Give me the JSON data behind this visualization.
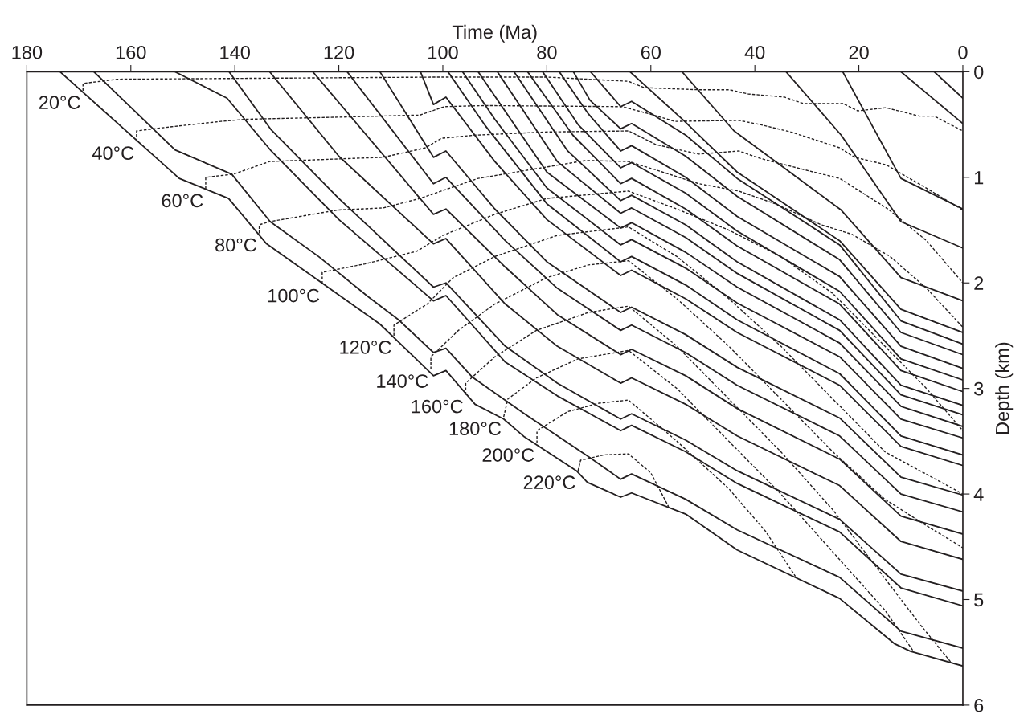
{
  "chart_data": {
    "type": "line",
    "xlabel": "Time (Ma)",
    "ylabel": "Depth (km)",
    "xlim": [
      180,
      0
    ],
    "xticks": [
      180,
      160,
      140,
      120,
      100,
      80,
      60,
      40,
      20,
      0
    ],
    "ylim": [
      6,
      0
    ],
    "yticks": [
      0,
      1,
      2,
      3,
      4,
      5,
      6
    ],
    "grid": false,
    "legend": false,
    "series": [
      {
        "color": "#231f20",
        "x": [
          173.6,
          150.7,
          141.2,
          133.9,
          112.1,
          101.8,
          99.4,
          93.8,
          88.3,
          84.3,
          74.3,
          72.2,
          65.8,
          63.7,
          53.3,
          43.4,
          23.7,
          13.1,
          10.1,
          0
        ],
        "values": [
          0,
          1.01,
          1.2,
          1.63,
          2.39,
          2.88,
          2.83,
          3.15,
          3.29,
          3.46,
          3.78,
          3.89,
          4.03,
          3.99,
          4.19,
          4.53,
          4.99,
          5.42,
          5.49,
          5.63
        ]
      },
      {
        "color": "#231f20",
        "x": [
          167.1,
          151.5,
          140.6,
          133.2,
          123.9,
          114.4,
          108.5,
          101.8,
          99.4,
          94.4,
          84.3,
          71.9,
          65.8,
          63.7,
          53.3,
          43.4,
          23.7,
          11.9,
          0
        ],
        "values": [
          0,
          0.74,
          0.97,
          1.42,
          1.75,
          2.13,
          2.35,
          2.66,
          2.62,
          2.89,
          3.24,
          3.65,
          3.86,
          3.81,
          4.05,
          4.34,
          4.79,
          5.3,
          5.46
        ]
      },
      {
        "color": "#231f20",
        "x": [
          151.5,
          141.5,
          133,
          120,
          101.8,
          99.4,
          88,
          78,
          65.8,
          63.7,
          53.3,
          43.4,
          23.7,
          11.9,
          0
        ],
        "values": [
          0,
          0.25,
          0.75,
          1.4,
          2.17,
          2.12,
          2.75,
          3.07,
          3.4,
          3.35,
          3.6,
          3.9,
          4.36,
          4.89,
          5.06
        ]
      },
      {
        "color": "#231f20",
        "x": [
          141.1,
          133,
          120,
          101.8,
          99.4,
          88,
          78,
          65.8,
          63.7,
          53.3,
          43.4,
          23.7,
          11.9,
          0
        ],
        "values": [
          0,
          0.55,
          1.2,
          2.04,
          2.0,
          2.6,
          2.95,
          3.29,
          3.24,
          3.49,
          3.78,
          4.24,
          4.76,
          4.92
        ]
      },
      {
        "color": "#231f20",
        "x": [
          133.3,
          120,
          101.8,
          99.4,
          88,
          78,
          65.8,
          63.7,
          53.3,
          43.4,
          23.7,
          11.9,
          0
        ],
        "values": [
          0,
          0.8,
          1.63,
          1.58,
          2.2,
          2.6,
          2.95,
          2.9,
          3.15,
          3.45,
          3.92,
          4.45,
          4.62
        ]
      },
      {
        "color": "#231f20",
        "x": [
          125,
          101.8,
          99.4,
          88,
          78,
          65.8,
          63.7,
          53.3,
          43.4,
          23.7,
          11.9,
          0
        ],
        "values": [
          0,
          1.35,
          1.3,
          1.85,
          2.3,
          2.68,
          2.63,
          2.88,
          3.19,
          3.67,
          4.21,
          4.38
        ]
      },
      {
        "color": "#231f20",
        "x": [
          118.4,
          101.8,
          99.4,
          88,
          78,
          65.8,
          63.7,
          53.3,
          43.4,
          23.7,
          11.9,
          0
        ],
        "values": [
          0,
          1.06,
          1.0,
          1.6,
          2.05,
          2.45,
          2.4,
          2.66,
          2.97,
          3.45,
          4.0,
          4.17
        ]
      },
      {
        "color": "#231f20",
        "x": [
          112.1,
          101.8,
          99.4,
          90,
          80,
          65.8,
          63.7,
          53.3,
          43.4,
          23.7,
          11.9,
          0
        ],
        "values": [
          0,
          0.81,
          0.75,
          1.3,
          1.8,
          2.28,
          2.23,
          2.49,
          2.8,
          3.28,
          3.84,
          4.01
        ]
      },
      {
        "color": "#231f20",
        "x": [
          104.3,
          101.8,
          99.4,
          90,
          80,
          65.8,
          63.7,
          53.3,
          43.4,
          23.7,
          11.9,
          0
        ],
        "values": [
          0,
          0.31,
          0.24,
          0.85,
          1.4,
          1.93,
          1.88,
          2.15,
          2.47,
          2.97,
          3.55,
          3.73
        ]
      },
      {
        "color": "#231f20",
        "x": [
          99,
          92,
          80,
          65.8,
          63.7,
          53.3,
          43.4,
          23.7,
          11.9,
          0
        ],
        "values": [
          0,
          0.5,
          1.25,
          1.8,
          1.75,
          2.02,
          2.35,
          2.86,
          3.45,
          3.63
        ]
      },
      {
        "color": "#231f20",
        "x": [
          96.2,
          90,
          80,
          65.8,
          63.7,
          53.3,
          43.4,
          23.7,
          11.9,
          0
        ],
        "values": [
          0,
          0.45,
          1.1,
          1.64,
          1.59,
          1.86,
          2.19,
          2.7,
          3.29,
          3.47
        ]
      },
      {
        "color": "#231f20",
        "x": [
          93.2,
          80,
          65.8,
          63.7,
          53.3,
          43.4,
          23.7,
          11.9,
          0
        ],
        "values": [
          0,
          0.95,
          1.48,
          1.43,
          1.71,
          2.04,
          2.57,
          3.17,
          3.36
        ]
      },
      {
        "color": "#231f20",
        "x": [
          89.5,
          78,
          65.8,
          63.7,
          53.3,
          43.4,
          23.7,
          11.9,
          0
        ],
        "values": [
          0,
          0.85,
          1.34,
          1.29,
          1.57,
          1.91,
          2.45,
          3.06,
          3.25
        ]
      },
      {
        "color": "#231f20",
        "x": [
          86.3,
          76,
          65.8,
          63.7,
          53.3,
          43.4,
          23.7,
          11.9,
          0
        ],
        "values": [
          0,
          0.75,
          1.22,
          1.17,
          1.45,
          1.8,
          2.35,
          2.97,
          3.16
        ]
      },
      {
        "color": "#231f20",
        "x": [
          83.7,
          75,
          65.8,
          63.7,
          53.3,
          43.4,
          23.7,
          11.9,
          0
        ],
        "values": [
          0,
          0.6,
          1.06,
          1.01,
          1.3,
          1.65,
          2.2,
          2.83,
          3.03
        ]
      },
      {
        "color": "#231f20",
        "x": [
          80.8,
          74,
          65.8,
          63.7,
          53.3,
          43.4,
          23.7,
          11.9,
          0
        ],
        "values": [
          0,
          0.5,
          0.91,
          0.86,
          1.15,
          1.51,
          2.08,
          2.72,
          2.92
        ]
      },
      {
        "color": "#231f20",
        "x": [
          77.6,
          72,
          65.8,
          63.7,
          53.3,
          43.4,
          23.7,
          11.9,
          0
        ],
        "values": [
          0,
          0.4,
          0.75,
          0.7,
          1.0,
          1.37,
          1.94,
          2.6,
          2.81
        ]
      },
      {
        "color": "#231f20",
        "x": [
          74.9,
          71.7,
          65.8,
          63.7,
          53.3,
          43.4,
          23.7,
          11.9,
          0
        ],
        "values": [
          0,
          0.27,
          0.54,
          0.49,
          0.8,
          1.18,
          1.78,
          2.47,
          2.68
        ]
      },
      {
        "color": "#231f20",
        "x": [
          71.6,
          65.8,
          63.7,
          53.3,
          43.4,
          23.7,
          11.9,
          0
        ],
        "values": [
          0,
          0.33,
          0.28,
          0.6,
          1.01,
          1.64,
          2.36,
          2.58
        ]
      },
      {
        "color": "#231f20",
        "x": [
          64,
          53.7,
          43.4,
          23.7,
          11.9,
          0
        ],
        "values": [
          0,
          0.46,
          0.95,
          1.6,
          2.25,
          2.47
        ]
      },
      {
        "color": "#231f20",
        "x": [
          54,
          44,
          23.4,
          11.9,
          0
        ],
        "values": [
          0,
          0.56,
          1.31,
          1.95,
          2.17
        ]
      },
      {
        "color": "#231f20",
        "x": [
          34,
          23.4,
          11.9,
          0
        ],
        "values": [
          0,
          0.6,
          1.42,
          1.67
        ]
      },
      {
        "color": "#231f20",
        "x": [
          23.1,
          11.9,
          0
        ],
        "values": [
          0,
          1.01,
          1.3
        ]
      },
      {
        "color": "#231f20",
        "x": [
          11.9,
          0
        ],
        "values": [
          0,
          0.49
        ]
      },
      {
        "color": "#231f20",
        "x": [
          5.5,
          0
        ],
        "values": [
          0,
          0.25
        ]
      },
      {
        "color": "#231f20",
        "line_style": "dashed",
        "x": [
          169.2,
          169.2,
          162.5,
          100,
          80,
          64.3,
          61.3,
          50.8,
          44.9,
          41.3,
          34.3,
          30.7,
          23.1,
          20.2,
          14.8,
          8.4,
          5.5,
          0
        ],
        "values": [
          0.18,
          0.11,
          0.07,
          0.05,
          0.05,
          0.09,
          0.15,
          0.17,
          0.17,
          0.21,
          0.24,
          0.3,
          0.3,
          0.37,
          0.34,
          0.42,
          0.42,
          0.56
        ]
      },
      {
        "color": "#231f20",
        "line_style": "dashed",
        "x": [
          158.9,
          158.9,
          152.1,
          142.7,
          138,
          120.3,
          104.4,
          99.7,
          91.9,
          65.5,
          60.2,
          55.4,
          43.1,
          39,
          33.1,
          23.7,
          20.8,
          14.8,
          7.1,
          0
        ],
        "values": [
          0.66,
          0.56,
          0.52,
          0.47,
          0.45,
          0.43,
          0.41,
          0.33,
          0.32,
          0.33,
          0.4,
          0.47,
          0.46,
          0.5,
          0.57,
          0.72,
          0.81,
          0.88,
          1.1,
          1.31
        ]
      },
      {
        "color": "#231f20",
        "line_style": "dashed",
        "x": [
          145.6,
          145.6,
          140.3,
          133.3,
          111.5,
          103.3,
          100.3,
          93.8,
          80,
          64.3,
          59,
          50.8,
          43.1,
          39,
          29.5,
          23.7,
          14.4,
          7,
          0
        ],
        "values": [
          1.11,
          1.0,
          0.97,
          0.85,
          0.81,
          0.72,
          0.63,
          0.6,
          0.57,
          0.56,
          0.69,
          0.78,
          0.75,
          0.82,
          0.94,
          1.01,
          1.3,
          1.6,
          2.0
        ]
      },
      {
        "color": "#231f20",
        "line_style": "dashed",
        "x": [
          135.3,
          135.3,
          133.3,
          120.3,
          111.5,
          104.4,
          100.3,
          93.2,
          72.5,
          64.3,
          59,
          50.8,
          43.1,
          36.1,
          27.2,
          21.3,
          14,
          7,
          0
        ],
        "values": [
          1.53,
          1.45,
          1.42,
          1.31,
          1.29,
          1.2,
          1.13,
          1.01,
          0.84,
          0.85,
          0.93,
          1.06,
          1.13,
          1.25,
          1.45,
          1.54,
          1.75,
          2.05,
          2.42
        ]
      },
      {
        "color": "#231f20",
        "line_style": "dashed",
        "x": [
          123.2,
          123.2,
          115,
          105,
          100,
          90,
          80,
          64.3,
          55,
          45,
          35,
          25,
          15,
          7,
          0
        ],
        "values": [
          2.01,
          1.9,
          1.82,
          1.7,
          1.55,
          1.35,
          1.2,
          1.13,
          1.3,
          1.5,
          1.75,
          2.1,
          2.6,
          3.0,
          3.4
        ]
      },
      {
        "color": "#231f20",
        "line_style": "dashed",
        "x": [
          109.4,
          109.4,
          103,
          98,
          90,
          78,
          64.3,
          55,
          45,
          35,
          25,
          15,
          0
        ],
        "values": [
          2.5,
          2.4,
          2.2,
          1.95,
          1.75,
          1.55,
          1.47,
          1.75,
          2.15,
          2.6,
          3.1,
          3.6,
          4.0
        ]
      },
      {
        "color": "#231f20",
        "line_style": "dashed",
        "x": [
          102.3,
          102.3,
          97,
          90,
          80,
          72,
          64.3,
          55,
          45,
          35,
          25,
          15,
          7,
          0
        ],
        "values": [
          2.82,
          2.7,
          2.45,
          2.2,
          1.95,
          1.83,
          1.79,
          2.15,
          2.6,
          3.1,
          3.6,
          4.05,
          4.3,
          4.51
        ]
      },
      {
        "color": "#231f20",
        "line_style": "dashed",
        "x": [
          95.6,
          95.6,
          90,
          82,
          72,
          64.3,
          55,
          45,
          35,
          25,
          15,
          8,
          2.2
        ],
        "values": [
          3.06,
          2.95,
          2.7,
          2.45,
          2.28,
          2.22,
          2.6,
          3.1,
          3.6,
          4.15,
          4.8,
          5.25,
          5.6
        ]
      },
      {
        "color": "#231f20",
        "line_style": "dashed",
        "x": [
          88.3,
          87.5,
          82,
          74,
          64.3,
          55,
          45,
          35,
          25,
          15,
          9.5
        ],
        "values": [
          3.27,
          3.1,
          2.9,
          2.72,
          2.64,
          3.0,
          3.5,
          4.0,
          4.55,
          5.1,
          5.49
        ]
      },
      {
        "color": "#231f20",
        "line_style": "dashed",
        "x": [
          81.9,
          81.9,
          76,
          70,
          64.3,
          55,
          45,
          38,
          32.2
        ],
        "values": [
          3.52,
          3.4,
          3.22,
          3.14,
          3.11,
          3.5,
          3.95,
          4.35,
          4.78
        ]
      },
      {
        "color": "#231f20",
        "line_style": "dashed",
        "x": [
          74.0,
          73.5,
          69,
          64.3,
          60,
          56.6
        ],
        "values": [
          3.78,
          3.68,
          3.63,
          3.62,
          3.8,
          4.12
        ]
      }
    ],
    "annotations": [
      {
        "text": "20°C",
        "x": 169.2,
        "y": 0.18
      },
      {
        "text": "40°C",
        "x": 158.9,
        "y": 0.66
      },
      {
        "text": "60°C",
        "x": 145.6,
        "y": 1.11
      },
      {
        "text": "80°C",
        "x": 135.3,
        "y": 1.53
      },
      {
        "text": "100°C",
        "x": 123.2,
        "y": 2.01
      },
      {
        "text": "120°C",
        "x": 109.4,
        "y": 2.5
      },
      {
        "text": "140°C",
        "x": 102.3,
        "y": 2.82
      },
      {
        "text": "160°C",
        "x": 95.6,
        "y": 3.06
      },
      {
        "text": "180°C",
        "x": 88.3,
        "y": 3.27
      },
      {
        "text": "200°C",
        "x": 81.9,
        "y": 3.52
      },
      {
        "text": "220°C",
        "x": 74.0,
        "y": 3.78
      }
    ]
  }
}
